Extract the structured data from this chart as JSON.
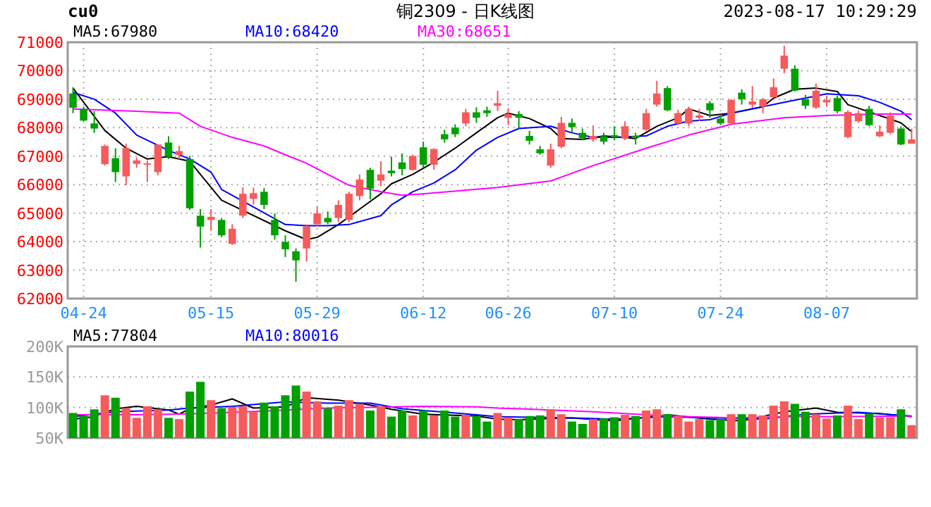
{
  "chart_data": [
    {
      "type": "candlestick",
      "title": "铜2309 - 日K线图",
      "annotations": [
        "cu0",
        "2023-08-17 10:29:29"
      ],
      "categories": [
        null,
        "04-24",
        null,
        null,
        null,
        null,
        null,
        null,
        null,
        null,
        null,
        null,
        null,
        "05-15",
        null,
        null,
        null,
        null,
        null,
        null,
        null,
        null,
        null,
        "05-29",
        null,
        null,
        null,
        null,
        null,
        null,
        null,
        null,
        null,
        "06-12",
        null,
        null,
        null,
        null,
        null,
        null,
        null,
        "06-26",
        null,
        null,
        null,
        null,
        null,
        null,
        null,
        null,
        null,
        "07-10",
        null,
        null,
        null,
        null,
        null,
        null,
        null,
        null,
        null,
        "07-24",
        null,
        null,
        null,
        null,
        null,
        null,
        null,
        null,
        null,
        "08-07",
        null,
        null,
        null,
        null,
        null,
        null,
        null,
        null
      ],
      "ohlc": [
        [
          69200,
          69420,
          68510,
          68700
        ],
        [
          68660,
          68740,
          68230,
          68250
        ],
        [
          68150,
          68580,
          67820,
          67970
        ],
        [
          66720,
          67410,
          66670,
          67360
        ],
        [
          66930,
          67280,
          66090,
          66440
        ],
        [
          66290,
          67440,
          65980,
          67280
        ],
        [
          66730,
          66950,
          66590,
          66850
        ],
        [
          66720,
          66850,
          66090,
          66750
        ],
        [
          66440,
          67410,
          66330,
          67410
        ],
        [
          67480,
          67700,
          66900,
          66980
        ],
        [
          67050,
          67360,
          66900,
          67180
        ],
        [
          66900,
          67010,
          65110,
          65170
        ],
        [
          64910,
          65140,
          63790,
          64530
        ],
        [
          64760,
          65140,
          64380,
          64870
        ],
        [
          64760,
          64830,
          64150,
          64220
        ],
        [
          63920,
          64610,
          63890,
          64450
        ],
        [
          64910,
          65910,
          64830,
          65680
        ],
        [
          65500,
          65900,
          65300,
          65700
        ],
        [
          65750,
          65880,
          65140,
          65290
        ],
        [
          64760,
          64990,
          64070,
          64220
        ],
        [
          63990,
          64220,
          63460,
          63730
        ],
        [
          63660,
          63760,
          62590,
          63340
        ],
        [
          63760,
          64610,
          63300,
          64530
        ],
        [
          64610,
          65220,
          64530,
          64990
        ],
        [
          64830,
          65060,
          64610,
          64680
        ],
        [
          64830,
          65450,
          64680,
          65290
        ],
        [
          64760,
          65750,
          64680,
          65680
        ],
        [
          65600,
          66360,
          65450,
          66180
        ],
        [
          66520,
          66590,
          65480,
          65860
        ],
        [
          66140,
          66820,
          65940,
          66360
        ],
        [
          66490,
          66980,
          66290,
          66400
        ],
        [
          66780,
          67100,
          66330,
          66550
        ],
        [
          66520,
          67050,
          66490,
          67010
        ],
        [
          67310,
          67510,
          66590,
          66700
        ],
        [
          66700,
          67280,
          66520,
          67250
        ],
        [
          67770,
          67930,
          67470,
          67590
        ],
        [
          68000,
          68120,
          67670,
          67770
        ],
        [
          68150,
          68660,
          68050,
          68540
        ],
        [
          68540,
          68720,
          68170,
          68350
        ],
        [
          68610,
          68740,
          68380,
          68510
        ],
        [
          68770,
          69300,
          68580,
          68860
        ],
        [
          68350,
          68690,
          68090,
          68480
        ],
        [
          68480,
          68580,
          67970,
          68350
        ],
        [
          67710,
          67890,
          67410,
          67540
        ],
        [
          67240,
          67360,
          67050,
          67100
        ],
        [
          66670,
          67440,
          66590,
          67240
        ],
        [
          67330,
          68380,
          67280,
          68170
        ],
        [
          68170,
          68320,
          67820,
          68020
        ],
        [
          67820,
          67970,
          67560,
          67630
        ],
        [
          67590,
          68080,
          67510,
          67710
        ],
        [
          67700,
          67820,
          67410,
          67510
        ],
        [
          67740,
          68050,
          67560,
          67670
        ],
        [
          67620,
          68230,
          67560,
          68050
        ],
        [
          67710,
          67820,
          67410,
          67670
        ],
        [
          67930,
          68660,
          67890,
          68510
        ],
        [
          68810,
          69650,
          68740,
          69200
        ],
        [
          69390,
          69460,
          68580,
          68610
        ],
        [
          68150,
          68630,
          68090,
          68510
        ],
        [
          68150,
          68740,
          68050,
          68660
        ],
        [
          68350,
          68660,
          68230,
          68430
        ],
        [
          68860,
          68940,
          68350,
          68610
        ],
        [
          68320,
          68430,
          68090,
          68150
        ],
        [
          68150,
          69010,
          68090,
          68970
        ],
        [
          69230,
          69350,
          68810,
          69000
        ],
        [
          68810,
          69460,
          68710,
          68920
        ],
        [
          68740,
          69040,
          68510,
          69000
        ],
        [
          69070,
          69730,
          69040,
          69420
        ],
        [
          70070,
          70880,
          69910,
          70530
        ],
        [
          70070,
          70190,
          69270,
          69300
        ],
        [
          69000,
          69150,
          68660,
          68770
        ],
        [
          68710,
          69550,
          68660,
          69300
        ],
        [
          68890,
          69120,
          68740,
          68970
        ],
        [
          69040,
          69120,
          68510,
          68580
        ],
        [
          67670,
          68610,
          67630,
          68550
        ],
        [
          68230,
          68610,
          68170,
          68510
        ],
        [
          68660,
          68770,
          68050,
          68090
        ],
        [
          67700,
          68080,
          67670,
          67860
        ],
        [
          67820,
          68540,
          67770,
          68430
        ],
        [
          67970,
          68050,
          67390,
          67410
        ],
        [
          67440,
          67970,
          67440,
          67590
        ]
      ],
      "colors": [
        "#00a000",
        "#00a000",
        "#00a000",
        "#f65a5a",
        "#00a000",
        "#f65a5a",
        "#f65a5a",
        "#f65a5a",
        "#f65a5a",
        "#00a000",
        "#f65a5a",
        "#00a000",
        "#00a000",
        "#f65a5a",
        "#00a000",
        "#f65a5a",
        "#f65a5a",
        "#f65a5a",
        "#00a000",
        "#00a000",
        "#00a000",
        "#00a000",
        "#f65a5a",
        "#f65a5a",
        "#00a000",
        "#f65a5a",
        "#f65a5a",
        "#f65a5a",
        "#00a000",
        "#f65a5a",
        "#00a000",
        "#00a000",
        "#f65a5a",
        "#00a000",
        "#f65a5a",
        "#00a000",
        "#00a000",
        "#f65a5a",
        "#00a000",
        "#00a000",
        "#f65a5a",
        "#f65a5a",
        "#00a000",
        "#00a000",
        "#00a000",
        "#f65a5a",
        "#f65a5a",
        "#00a000",
        "#00a000",
        "#f65a5a",
        "#00a000",
        "#00a000",
        "#f65a5a",
        "#00a000",
        "#f65a5a",
        "#f65a5a",
        "#00a000",
        "#f65a5a",
        "#f65a5a",
        "#f65a5a",
        "#00a000",
        "#00a000",
        "#f65a5a",
        "#00a000",
        "#f65a5a",
        "#f65a5a",
        "#f65a5a",
        "#f65a5a",
        "#00a000",
        "#00a000",
        "#f65a5a",
        "#f65a5a",
        "#00a000",
        "#f65a5a",
        "#f65a5a",
        "#00a000",
        "#f65a5a",
        "#f65a5a",
        "#00a000",
        "#f65a5a"
      ],
      "series": [
        {
          "type": "line",
          "name": "MA5:67980",
          "color": "#000000",
          "values": [
            69390,
            null,
            null,
            67900,
            null,
            67280,
            null,
            66900,
            null,
            66980,
            null,
            66820,
            66360,
            null,
            65450,
            null,
            null,
            null,
            null,
            null,
            64380,
            null,
            64070,
            64150,
            null,
            64600,
            null,
            65140,
            null,
            65680,
            66030,
            null,
            66360,
            null,
            66790,
            null,
            67280,
            null,
            67820,
            null,
            68350,
            68510,
            null,
            68320,
            null,
            67970,
            67620,
            null,
            67590,
            null,
            67710,
            null,
            null,
            67620,
            null,
            68050,
            null,
            68350,
            68660,
            null,
            68430,
            null,
            68510,
            null,
            null,
            68740,
            69040,
            null,
            69350,
            null,
            69390,
            null,
            69270,
            68810,
            null,
            null,
            68430,
            null,
            68170,
            67860
          ]
        },
        {
          "type": "line",
          "name": "MA10:68420",
          "color": "#0000ff",
          "values": [
            69240,
            null,
            69000,
            null,
            68510,
            null,
            67740,
            null,
            null,
            67200,
            null,
            66900,
            null,
            66440,
            65830,
            null,
            null,
            null,
            null,
            null,
            64600,
            null,
            64560,
            null,
            64560,
            null,
            64600,
            null,
            null,
            64910,
            65290,
            null,
            65750,
            null,
            66060,
            null,
            66520,
            null,
            67210,
            null,
            67660,
            null,
            67970,
            null,
            null,
            68050,
            null,
            67820,
            null,
            67660,
            null,
            67660,
            null,
            null,
            67710,
            null,
            68050,
            null,
            68230,
            null,
            68280,
            null,
            68510,
            null,
            null,
            68740,
            null,
            68890,
            null,
            69040,
            null,
            69190,
            null,
            null,
            69120,
            null,
            68890,
            null,
            68580,
            68280
          ]
        },
        {
          "type": "line",
          "name": "MA30:68651",
          "color": "#ff00ff",
          "values": [
            68660,
            null,
            null,
            null,
            null,
            null,
            68580,
            null,
            null,
            null,
            68510,
            null,
            68050,
            null,
            null,
            67660,
            null,
            null,
            67360,
            null,
            67050,
            null,
            66750,
            null,
            66360,
            null,
            65980,
            null,
            null,
            65750,
            null,
            65630,
            null,
            65680,
            null,
            null,
            null,
            null,
            null,
            null,
            65900,
            null,
            null,
            null,
            null,
            66130,
            null,
            null,
            null,
            66670,
            null,
            null,
            null,
            null,
            67280,
            null,
            null,
            null,
            67740,
            null,
            null,
            null,
            68120,
            null,
            null,
            null,
            null,
            68350,
            null,
            null,
            null,
            68430,
            null,
            null,
            null,
            null,
            68480,
            null,
            null,
            68480
          ]
        }
      ],
      "ylim": [
        62000,
        71000
      ],
      "yticks": [
        62000,
        63000,
        64000,
        65000,
        66000,
        67000,
        68000,
        69000,
        70000,
        71000
      ],
      "grid": true,
      "legend": "top"
    },
    {
      "type": "bar",
      "categories": [
        null,
        null,
        null,
        null,
        null,
        null,
        null,
        null,
        null,
        null,
        null,
        null,
        null,
        null,
        null,
        null,
        null,
        null,
        null,
        null,
        null,
        null,
        null,
        null,
        null,
        null,
        null,
        null,
        null,
        null,
        null,
        null,
        null,
        null,
        null,
        null,
        null,
        null,
        null,
        null,
        null,
        null,
        null,
        null,
        null,
        null,
        null,
        null,
        null,
        null,
        null,
        null,
        null,
        null,
        null,
        null,
        null,
        null,
        null,
        null,
        null,
        null,
        null,
        null,
        null,
        null,
        null,
        null,
        null,
        null,
        null,
        null,
        null,
        null,
        null,
        null,
        null,
        null,
        null,
        null
      ],
      "values": [
        91000,
        86000,
        97000,
        120000,
        116000,
        99000,
        83000,
        102000,
        97000,
        83000,
        81000,
        126000,
        142000,
        112000,
        99000,
        101000,
        102000,
        93000,
        108000,
        102000,
        120000,
        136000,
        126000,
        110000,
        99000,
        103000,
        112000,
        106000,
        95000,
        102000,
        85000,
        95000,
        87000,
        95000,
        87000,
        95000,
        85000,
        88000,
        86000,
        77000,
        91000,
        84000,
        81000,
        86000,
        87000,
        97000,
        89000,
        77000,
        73000,
        81000,
        82000,
        84000,
        88000,
        86000,
        95000,
        97000,
        89000,
        86000,
        77000,
        81000,
        79000,
        81000,
        89000,
        89000,
        89000,
        87000,
        103000,
        110000,
        106000,
        93000,
        89000,
        82000,
        87000,
        103000,
        81000,
        90000,
        84000,
        84000,
        97000,
        71000
      ],
      "colors": [
        "#00a000",
        "#00a000",
        "#00a000",
        "#f65a5a",
        "#00a000",
        "#f65a5a",
        "#f65a5a",
        "#f65a5a",
        "#f65a5a",
        "#00a000",
        "#f65a5a",
        "#00a000",
        "#00a000",
        "#f65a5a",
        "#00a000",
        "#f65a5a",
        "#f65a5a",
        "#f65a5a",
        "#00a000",
        "#00a000",
        "#00a000",
        "#00a000",
        "#f65a5a",
        "#f65a5a",
        "#00a000",
        "#f65a5a",
        "#f65a5a",
        "#f65a5a",
        "#00a000",
        "#f65a5a",
        "#00a000",
        "#00a000",
        "#f65a5a",
        "#00a000",
        "#f65a5a",
        "#00a000",
        "#00a000",
        "#f65a5a",
        "#00a000",
        "#00a000",
        "#f65a5a",
        "#f65a5a",
        "#00a000",
        "#00a000",
        "#00a000",
        "#f65a5a",
        "#f65a5a",
        "#00a000",
        "#00a000",
        "#f65a5a",
        "#00a000",
        "#00a000",
        "#f65a5a",
        "#00a000",
        "#f65a5a",
        "#f65a5a",
        "#00a000",
        "#f65a5a",
        "#f65a5a",
        "#f65a5a",
        "#00a000",
        "#00a000",
        "#f65a5a",
        "#00a000",
        "#f65a5a",
        "#f65a5a",
        "#f65a5a",
        "#f65a5a",
        "#00a000",
        "#00a000",
        "#f65a5a",
        "#f65a5a",
        "#00a000",
        "#f65a5a",
        "#f65a5a",
        "#00a000",
        "#f65a5a",
        "#f65a5a",
        "#00a000",
        "#f65a5a"
      ],
      "series": [
        {
          "type": "line",
          "name": "MA5:77804",
          "color": "#000000",
          "values": [
            81000,
            null,
            85000,
            null,
            98000,
            null,
            102000,
            null,
            null,
            96000,
            89000,
            98000,
            null,
            104000,
            null,
            114000,
            null,
            99000,
            null,
            null,
            101000,
            null,
            116000,
            null,
            null,
            112000,
            null,
            null,
            104000,
            null,
            97000,
            null,
            null,
            89000,
            null,
            null,
            null,
            null,
            86000,
            null,
            81000,
            null,
            80000,
            null,
            null,
            null,
            null,
            83000,
            null,
            null,
            null,
            78000,
            null,
            null,
            null,
            null,
            88000,
            null,
            null,
            null,
            81000,
            null,
            null,
            78000,
            null,
            null,
            null,
            93000,
            null,
            null,
            99000,
            null,
            92000,
            null,
            null,
            null,
            90000,
            null,
            null,
            85000
          ]
        },
        {
          "type": "line",
          "name": "MA10:80016",
          "color": "#0000ff",
          "values": [
            85000,
            null,
            null,
            null,
            93000,
            null,
            null,
            null,
            null,
            96000,
            null,
            99000,
            null,
            null,
            null,
            102000,
            null,
            null,
            null,
            null,
            109000,
            null,
            null,
            null,
            107000,
            null,
            null,
            null,
            107000,
            null,
            null,
            98000,
            null,
            null,
            null,
            null,
            91000,
            null,
            88000,
            null,
            85000,
            null,
            null,
            null,
            null,
            null,
            null,
            83000,
            null,
            null,
            null,
            81000,
            null,
            null,
            null,
            null,
            85000,
            null,
            null,
            null,
            83000,
            null,
            null,
            null,
            null,
            81000,
            null,
            null,
            null,
            89000,
            null,
            null,
            null,
            null,
            92000,
            null,
            null,
            null,
            null,
            86000
          ]
        },
        {
          "type": "line",
          "color": "#ff00ff",
          "values": [
            88000,
            null,
            null,
            null,
            null,
            null,
            88000,
            null,
            null,
            null,
            null,
            null,
            90000,
            null,
            null,
            null,
            null,
            null,
            94000,
            null,
            null,
            null,
            null,
            null,
            99000,
            null,
            null,
            null,
            null,
            null,
            null,
            null,
            null,
            102000,
            null,
            null,
            null,
            null,
            101000,
            null,
            99000,
            null,
            null,
            null,
            null,
            96000,
            null,
            null,
            null,
            93000,
            null,
            null,
            null,
            null,
            88000,
            null,
            null,
            null,
            85000,
            null,
            null,
            null,
            83000,
            null,
            null,
            null,
            null,
            85000,
            null,
            null,
            null,
            85000,
            null,
            null,
            null,
            null,
            null,
            null,
            null,
            86000
          ]
        }
      ],
      "ylim": [
        50000,
        200000
      ],
      "yticks": [
        {
          "value": 50000,
          "label": "50K"
        },
        {
          "value": 100000,
          "label": "100K"
        },
        {
          "value": 150000,
          "label": "150K"
        },
        {
          "value": 200000,
          "label": "200K"
        }
      ],
      "grid": true,
      "legend": "top",
      "tick_labels": "y"
    }
  ]
}
